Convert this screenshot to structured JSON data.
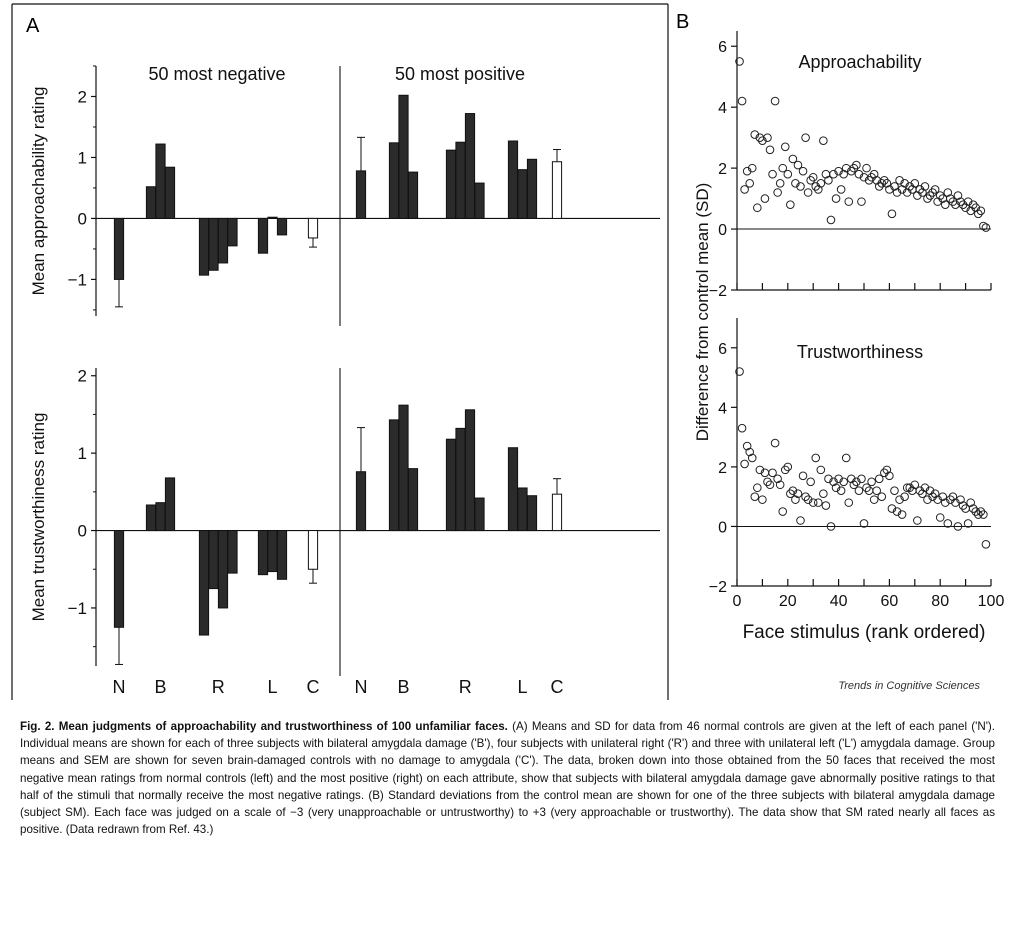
{
  "panel_a_label": "A",
  "panel_b_label": "B",
  "credit": "Trends in Cognitive Sciences",
  "caption": {
    "title": "Fig. 2. Mean judgments of approachability and trustworthiness of 100 unfamiliar faces.",
    "body": " (A) Means and SD for data from 46 normal controls are given at the left of each panel ('N'). Individual means are shown for each of three subjects with bilateral amygdala damage ('B'), four subjects with unilateral right ('R') and three with unilateral left ('L') amygdala damage. Group means and SEM are shown for seven brain-damaged controls with no damage to amygdala ('C'). The data, broken down into those obtained from the 50 faces that received the most negative mean ratings from normal controls (left) and the most positive (right) on each attribute, show that subjects with bilateral amygdala damage gave abnormally positive ratings to that half of the stimuli that normally receive the most negative ratings. (B) Standard deviations from the control mean are shown for one of the three subjects with bilateral amygdala damage (subject SM). Each face was judged on a scale of −3 (very unapproachable or untrustworthy) to +3 (very approachable or trustworthy). The data show that SM rated nearly all faces as positive. (Data redrawn from Ref. 43.)"
  },
  "chart_data": [
    {
      "type": "bar",
      "panel": "A-top",
      "ylabel": "Mean approachability rating",
      "ylim": [
        -1.6,
        2.5
      ],
      "yticks": [
        -1,
        0,
        1,
        2
      ],
      "groups": [
        "N",
        "B",
        "R",
        "L",
        "C"
      ],
      "halves": [
        {
          "name": "50 most negative",
          "bars": {
            "N": [
              -1.0
            ],
            "B": [
              0.52,
              1.22,
              0.84
            ],
            "R": [
              -0.93,
              -0.85,
              -0.73,
              -0.45
            ],
            "L": [
              -0.57,
              0.02,
              -0.27
            ],
            "C": [
              -0.32
            ]
          },
          "errors": {
            "N": 0.45,
            "C": 0.15
          }
        },
        {
          "name": "50 most positive",
          "bars": {
            "N": [
              0.78
            ],
            "B": [
              1.24,
              2.02,
              0.76
            ],
            "R": [
              1.12,
              1.25,
              1.72,
              0.58
            ],
            "L": [
              1.27,
              0.8,
              0.97
            ],
            "C": [
              0.93
            ]
          },
          "errors": {
            "N": 0.55,
            "C": 0.2
          }
        }
      ]
    },
    {
      "type": "bar",
      "panel": "A-bottom",
      "ylabel": "Mean trustworthiness rating",
      "ylim": [
        -1.75,
        2.1
      ],
      "yticks": [
        -1,
        0,
        1,
        2
      ],
      "groups": [
        "N",
        "B",
        "R",
        "L",
        "C"
      ],
      "halves": [
        {
          "name": "50 most negative",
          "bars": {
            "N": [
              -1.25
            ],
            "B": [
              0.33,
              0.36,
              0.68
            ],
            "R": [
              -1.35,
              -0.75,
              -1.0,
              -0.55
            ],
            "L": [
              -0.57,
              -0.53,
              -0.63
            ],
            "C": [
              -0.5
            ]
          },
          "errors": {
            "N": 0.48,
            "C": 0.18
          }
        },
        {
          "name": "50 most positive",
          "bars": {
            "N": [
              0.76
            ],
            "B": [
              1.43,
              1.62,
              0.8
            ],
            "R": [
              1.18,
              1.32,
              1.56,
              0.42
            ],
            "L": [
              1.07,
              0.55,
              0.45
            ],
            "C": [
              0.47
            ]
          },
          "errors": {
            "N": 0.57,
            "C": 0.2
          }
        }
      ]
    },
    {
      "type": "scatter",
      "panel": "B-top",
      "title": "Approachability",
      "ylabel": "Difference from control mean (SD)",
      "xlim": [
        0,
        100
      ],
      "ylim": [
        -2,
        6.5
      ],
      "yticks": [
        -2,
        0,
        2,
        4,
        6
      ],
      "x": [
        1,
        2,
        3,
        4,
        5,
        6,
        7,
        8,
        9,
        10,
        11,
        12,
        13,
        14,
        15,
        16,
        17,
        18,
        19,
        20,
        21,
        22,
        23,
        24,
        25,
        26,
        27,
        28,
        29,
        30,
        31,
        32,
        33,
        34,
        35,
        36,
        37,
        38,
        39,
        40,
        41,
        42,
        43,
        44,
        45,
        46,
        47,
        48,
        49,
        50,
        51,
        52,
        53,
        54,
        55,
        56,
        57,
        58,
        59,
        60,
        61,
        62,
        63,
        64,
        65,
        66,
        67,
        68,
        69,
        70,
        71,
        72,
        73,
        74,
        75,
        76,
        77,
        78,
        79,
        80,
        81,
        82,
        83,
        84,
        85,
        86,
        87,
        88,
        89,
        90,
        91,
        92,
        93,
        94,
        95,
        96,
        97,
        98
      ],
      "y": [
        5.5,
        4.2,
        1.3,
        1.9,
        1.5,
        2.0,
        3.1,
        0.7,
        3.0,
        2.9,
        1.0,
        3.0,
        2.6,
        1.8,
        4.2,
        1.2,
        1.5,
        2.0,
        2.7,
        1.8,
        0.8,
        2.3,
        1.5,
        2.1,
        1.4,
        1.9,
        3.0,
        1.2,
        1.6,
        1.7,
        1.4,
        1.3,
        1.5,
        2.9,
        1.8,
        1.6,
        0.3,
        1.8,
        1.0,
        1.9,
        1.3,
        1.8,
        2.0,
        0.9,
        1.9,
        2.0,
        2.1,
        1.8,
        0.9,
        1.7,
        2.0,
        1.6,
        1.7,
        1.8,
        1.6,
        1.4,
        1.5,
        1.6,
        1.5,
        1.3,
        0.5,
        1.4,
        1.2,
        1.6,
        1.3,
        1.5,
        1.2,
        1.4,
        1.3,
        1.5,
        1.1,
        1.3,
        1.2,
        1.4,
        1.0,
        1.1,
        1.2,
        1.3,
        0.9,
        1.1,
        1.0,
        0.8,
        1.2,
        1.0,
        0.9,
        0.8,
        1.1,
        0.9,
        0.8,
        0.7,
        0.9,
        0.6,
        0.8,
        0.7,
        0.5,
        0.6,
        0.1,
        0.05
      ]
    },
    {
      "type": "scatter",
      "panel": "B-bottom",
      "title": "Trustworthiness",
      "xlabel": "Face stimulus (rank ordered)",
      "xlim": [
        0,
        100
      ],
      "ylim": [
        -2,
        7
      ],
      "xticks": [
        0,
        20,
        40,
        60,
        80,
        100
      ],
      "yticks": [
        -2,
        0,
        2,
        4,
        6
      ],
      "x": [
        1,
        2,
        3,
        4,
        5,
        6,
        7,
        8,
        9,
        10,
        11,
        12,
        13,
        14,
        15,
        16,
        17,
        18,
        19,
        20,
        21,
        22,
        23,
        24,
        25,
        26,
        27,
        28,
        29,
        30,
        31,
        32,
        33,
        34,
        35,
        36,
        37,
        38,
        39,
        40,
        41,
        42,
        43,
        44,
        45,
        46,
        47,
        48,
        49,
        50,
        51,
        52,
        53,
        54,
        55,
        56,
        57,
        58,
        59,
        60,
        61,
        62,
        63,
        64,
        65,
        66,
        67,
        68,
        69,
        70,
        71,
        72,
        73,
        74,
        75,
        76,
        77,
        78,
        79,
        80,
        81,
        82,
        83,
        84,
        85,
        86,
        87,
        88,
        89,
        90,
        91,
        92,
        93,
        94,
        95,
        96,
        97,
        98
      ],
      "y": [
        5.2,
        3.3,
        2.1,
        2.7,
        2.5,
        2.3,
        1.0,
        1.3,
        1.9,
        0.9,
        1.8,
        1.5,
        1.4,
        1.8,
        2.8,
        1.6,
        1.4,
        0.5,
        1.9,
        2.0,
        1.1,
        1.2,
        0.9,
        1.1,
        0.2,
        1.7,
        1.0,
        0.9,
        1.5,
        0.8,
        2.3,
        0.8,
        1.9,
        1.1,
        0.7,
        1.6,
        0.0,
        1.5,
        1.3,
        1.6,
        1.2,
        1.5,
        2.3,
        0.8,
        1.6,
        1.4,
        1.5,
        1.2,
        1.6,
        0.1,
        1.3,
        1.2,
        1.5,
        0.9,
        1.2,
        1.6,
        1.0,
        1.8,
        1.9,
        1.7,
        0.6,
        1.2,
        0.5,
        0.9,
        0.4,
        1.0,
        1.3,
        1.3,
        1.2,
        1.4,
        0.2,
        1.2,
        1.1,
        1.3,
        0.9,
        1.2,
        1.0,
        1.1,
        0.9,
        0.3,
        1.0,
        0.8,
        0.1,
        0.9,
        1.0,
        0.8,
        0.0,
        0.9,
        0.7,
        0.6,
        0.1,
        0.8,
        0.6,
        0.5,
        0.4,
        0.5,
        0.4,
        -0.6
      ]
    }
  ]
}
